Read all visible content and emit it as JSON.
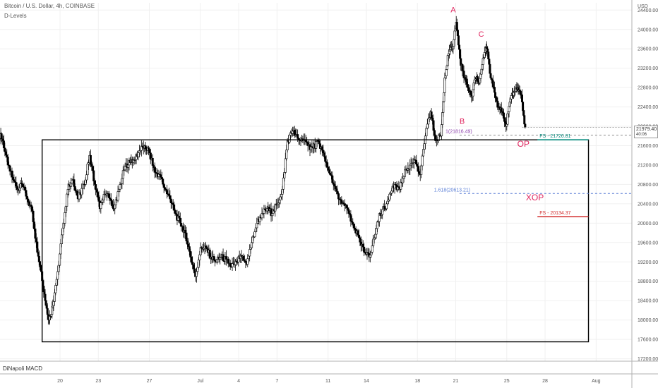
{
  "header": {
    "symbol_title": "Bitcoin / U.S. Dollar, 4h, COINBASE",
    "indicator": "D-Levels",
    "macd": "DiNapoli MACD"
  },
  "price_badge": {
    "price": "21979.40",
    "countdown": "40:06"
  },
  "colors": {
    "candle": "#000000",
    "grid": "#f0f0f0",
    "wave_label": "#e0245e",
    "teal_level": "#00897b",
    "red_level": "#d32f2f",
    "blue_dashed": "#5b7fd6",
    "grey_dashed": "#8a8a8a",
    "purple_text": "#8e44ad"
  },
  "chart_data": {
    "type": "candlestick",
    "y_axis": {
      "unit": "USD",
      "ticks": [
        24400,
        24000,
        23600,
        23200,
        22800,
        22400,
        22000,
        21600,
        21200,
        20800,
        20400,
        20000,
        19600,
        19200,
        18800,
        18400,
        18000,
        17600,
        17200
      ],
      "tick_labels": [
        "24400.00",
        "24000.00",
        "23600.00",
        "23200.00",
        "22800.00",
        "22400.00",
        "22000.00",
        "21600.00",
        "21200.00",
        "20800.00",
        "20400.00",
        "20000.00",
        "19600.00",
        "19200.00",
        "18800.00",
        "18400.00",
        "18000.00",
        "17600.00",
        "17200.00"
      ],
      "range": [
        17150,
        24550
      ]
    },
    "x_axis": {
      "labels": [
        {
          "t": "20",
          "day": 20
        },
        {
          "t": "23",
          "day": 23
        },
        {
          "t": "27",
          "day": 27
        },
        {
          "t": "Jul",
          "day": 31
        },
        {
          "t": "4",
          "day": 34
        },
        {
          "t": "7",
          "day": 37
        },
        {
          "t": "11",
          "day": 41
        },
        {
          "t": "14",
          "day": 44
        },
        {
          "t": "18",
          "day": 48
        },
        {
          "t": "21",
          "day": 51
        },
        {
          "t": "25",
          "day": 55
        },
        {
          "t": "28",
          "day": 58
        },
        {
          "t": "Aug",
          "day": 62
        }
      ],
      "range": [
        15.3,
        64.8
      ]
    },
    "closes": [
      [
        15.3,
        21700
      ],
      [
        15.6,
        21200
      ],
      [
        16.0,
        20900
      ],
      [
        16.4,
        20700
      ],
      [
        16.8,
        20800
      ],
      [
        17.1,
        20500
      ],
      [
        17.5,
        20250
      ],
      [
        17.9,
        19400
      ],
      [
        18.3,
        19000
      ],
      [
        18.6,
        18400
      ],
      [
        18.9,
        18000
      ],
      [
        19.2,
        18300
      ],
      [
        19.5,
        19000
      ],
      [
        19.9,
        19900
      ],
      [
        20.3,
        20700
      ],
      [
        20.7,
        20900
      ],
      [
        21.1,
        20500
      ],
      [
        21.5,
        20800
      ],
      [
        22.0,
        21400
      ],
      [
        22.4,
        20800
      ],
      [
        22.8,
        20300
      ],
      [
        23.2,
        20600
      ],
      [
        23.6,
        20500
      ],
      [
        24.0,
        20300
      ],
      [
        24.3,
        20700
      ],
      [
        24.7,
        21100
      ],
      [
        25.1,
        21300
      ],
      [
        25.5,
        21300
      ],
      [
        25.9,
        21500
      ],
      [
        26.3,
        21600
      ],
      [
        26.7,
        21450
      ],
      [
        27.1,
        21050
      ],
      [
        27.5,
        21000
      ],
      [
        27.9,
        20700
      ],
      [
        28.3,
        20500
      ],
      [
        28.7,
        20200
      ],
      [
        29.1,
        20000
      ],
      [
        29.5,
        19800
      ],
      [
        29.9,
        19300
      ],
      [
        30.3,
        18900
      ],
      [
        30.7,
        19500
      ],
      [
        31.1,
        19500
      ],
      [
        31.5,
        19300
      ],
      [
        31.9,
        19200
      ],
      [
        32.3,
        19300
      ],
      [
        32.7,
        19250
      ],
      [
        33.1,
        19100
      ],
      [
        33.5,
        19200
      ],
      [
        33.9,
        19300
      ],
      [
        34.3,
        19150
      ],
      [
        34.7,
        19600
      ],
      [
        35.1,
        20000
      ],
      [
        35.5,
        20200
      ],
      [
        35.9,
        20300
      ],
      [
        36.3,
        20200
      ],
      [
        36.7,
        20400
      ],
      [
        37.1,
        20700
      ],
      [
        37.5,
        21700
      ],
      [
        37.9,
        21900
      ],
      [
        38.3,
        21750
      ],
      [
        38.7,
        21700
      ],
      [
        39.1,
        21600
      ],
      [
        39.5,
        21550
      ],
      [
        39.9,
        21700
      ],
      [
        40.3,
        21450
      ],
      [
        40.7,
        21100
      ],
      [
        41.1,
        20800
      ],
      [
        41.5,
        20500
      ],
      [
        41.9,
        20400
      ],
      [
        42.3,
        20200
      ],
      [
        42.7,
        19900
      ],
      [
        43.1,
        19700
      ],
      [
        43.5,
        19400
      ],
      [
        43.9,
        19300
      ],
      [
        44.3,
        19700
      ],
      [
        44.7,
        20200
      ],
      [
        45.1,
        20300
      ],
      [
        45.5,
        20600
      ],
      [
        45.9,
        20800
      ],
      [
        46.3,
        20700
      ],
      [
        46.7,
        21100
      ],
      [
        47.1,
        21200
      ],
      [
        47.5,
        21300
      ],
      [
        47.9,
        21000
      ],
      [
        48.3,
        21800
      ],
      [
        48.7,
        22300
      ],
      [
        49.1,
        21700
      ],
      [
        49.5,
        21800
      ],
      [
        49.9,
        23000
      ],
      [
        50.2,
        23500
      ],
      [
        50.5,
        23600
      ],
      [
        50.8,
        24150
      ],
      [
        51.1,
        23400
      ],
      [
        51.4,
        23000
      ],
      [
        51.7,
        22800
      ],
      [
        52.0,
        22600
      ],
      [
        52.3,
        23000
      ],
      [
        52.6,
        22900
      ],
      [
        52.9,
        23400
      ],
      [
        53.2,
        23600
      ],
      [
        53.5,
        23000
      ],
      [
        53.8,
        22700
      ],
      [
        54.1,
        22400
      ],
      [
        54.4,
        22300
      ],
      [
        54.7,
        22000
      ],
      [
        55.0,
        22500
      ],
      [
        55.3,
        22700
      ],
      [
        55.6,
        22800
      ],
      [
        55.9,
        22650
      ],
      [
        56.2,
        21979.4
      ]
    ],
    "annotations": [
      {
        "text": "A",
        "x": 50.8,
        "y": 24350
      },
      {
        "text": "B",
        "x": 51.5,
        "y": 22050
      },
      {
        "text": "C",
        "x": 53.0,
        "y": 23850
      },
      {
        "text": "OP",
        "x": 56.3,
        "y": 21580
      },
      {
        "text": "XOP",
        "x": 57.2,
        "y": 20470
      }
    ],
    "levels": [
      {
        "label": "1(21816.49)",
        "value": 21816.49,
        "style": "dashed-grey",
        "label_x": 50.2,
        "x_from": 51.3,
        "x_to": 64.8
      },
      {
        "label": "1.618(20613.21)",
        "value": 20613.21,
        "style": "dashed-blue",
        "label_x": 49.3,
        "x_from": 51.3,
        "x_to": 64.8
      },
      {
        "label": "FS - 21720.81",
        "value": 21720.81,
        "style": "teal",
        "x_from": 57.4,
        "x_to": 61.4
      },
      {
        "label": "FS - 20134.37",
        "value": 20134.37,
        "style": "red",
        "x_from": 57.4,
        "x_to": 61.4
      }
    ],
    "box": {
      "x_from": 18.6,
      "x_to": 61.4,
      "y_top": 21720.81,
      "y_bottom": 17550
    },
    "last_price": 21979.4
  }
}
